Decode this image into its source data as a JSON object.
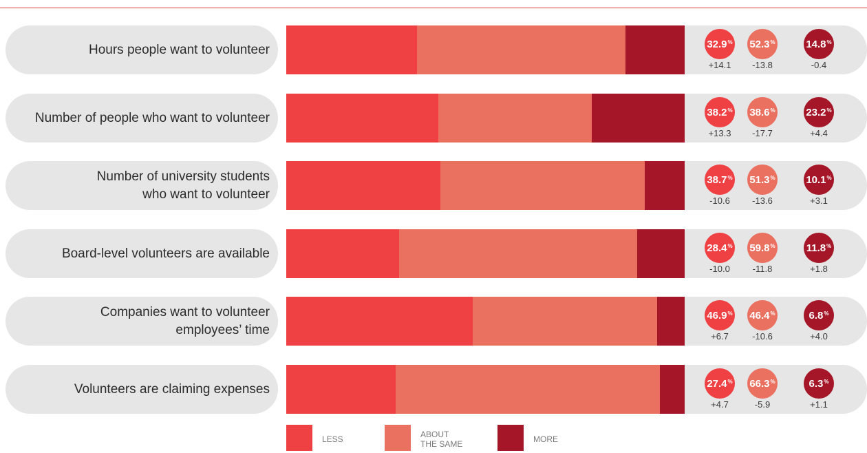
{
  "chart_data": {
    "type": "bar",
    "stacked": "horizontal-100",
    "categories": [
      "Hours people want to volunteer",
      "Number of people who want to volunteer",
      "Number of university students who want to volunteer",
      "Board-level volunteers are available",
      "Companies want to volunteer employees’ time",
      "Volunteers are claiming expenses"
    ],
    "category_lines": [
      [
        "Hours people want to volunteer"
      ],
      [
        "Number of people who want to volunteer"
      ],
      [
        "Number of university students",
        "who want to volunteer"
      ],
      [
        "Board-level volunteers are available"
      ],
      [
        "Companies want to volunteer",
        "employees’ time"
      ],
      [
        "Volunteers are claiming expenses"
      ]
    ],
    "series": [
      {
        "name": "LESS",
        "color": "#ef4043",
        "values": [
          32.9,
          38.2,
          38.7,
          28.4,
          46.9,
          27.4
        ],
        "changes": [
          "+14.1",
          "+13.3",
          "-10.6",
          "-10.0",
          "+6.7",
          "+4.7"
        ]
      },
      {
        "name": "ABOUT THE SAME",
        "color": "#ea7060",
        "values": [
          52.3,
          38.6,
          51.3,
          59.8,
          46.4,
          66.3
        ],
        "changes": [
          "-13.8",
          "-17.7",
          "-13.6",
          "-11.8",
          "-10.6",
          "-5.9"
        ]
      },
      {
        "name": "MORE",
        "color": "#a51728",
        "values": [
          14.8,
          23.2,
          10.1,
          11.8,
          6.8,
          6.3
        ],
        "changes": [
          "-0.4",
          "+4.4",
          "+3.1",
          "+1.8",
          "+4.0",
          "+1.1"
        ]
      }
    ],
    "value_suffix": "%",
    "legend": [
      {
        "lines": [
          "LESS"
        ]
      },
      {
        "lines": [
          "ABOUT",
          "THE SAME"
        ]
      },
      {
        "lines": [
          "MORE"
        ]
      }
    ],
    "legend_position": "bottom",
    "xlim": [
      0,
      100
    ],
    "title": "",
    "xlabel": "",
    "ylabel": ""
  }
}
